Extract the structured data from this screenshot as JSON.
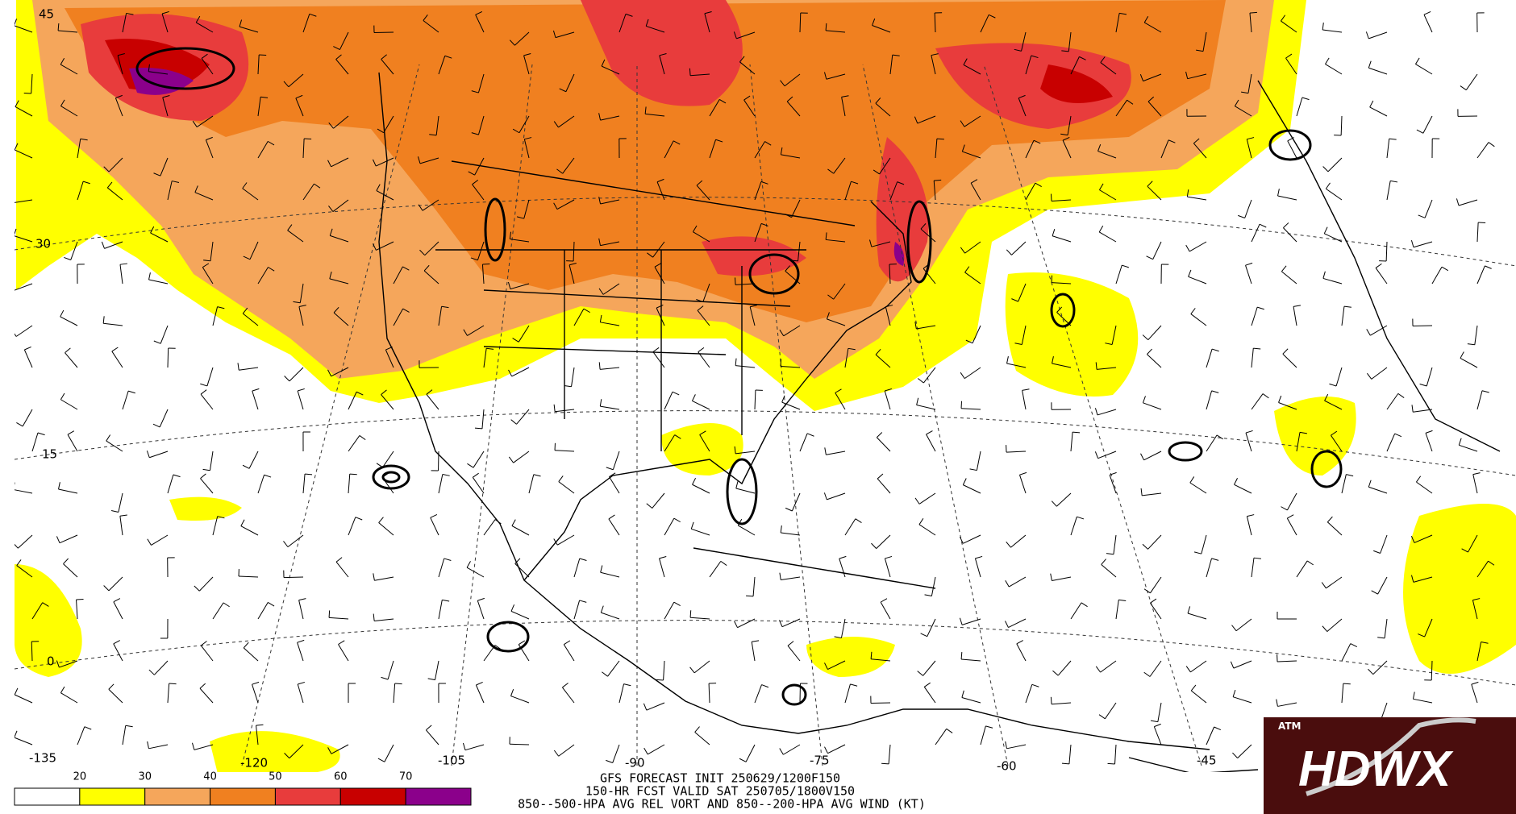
{
  "map": {
    "lat_labels": [
      45,
      30,
      15,
      0
    ],
    "lon_labels": [
      -135,
      -120,
      -105,
      -90,
      -75,
      -60,
      -45
    ],
    "colorbar": {
      "colors": [
        "#ffffff",
        "#ffff00",
        "#f5a65b",
        "#f08020",
        "#e83c3c",
        "#c80000",
        "#8b008b"
      ],
      "ticks": [
        20,
        30,
        40,
        50,
        60,
        70
      ]
    },
    "caption": [
      "GFS FORECAST INIT 250629/1200F150",
      "150-HR FCST VALID SAT 250705/1800V150",
      "850--500-HPA AVG REL VORT AND 850--200-HPA AVG WIND (KT)"
    ],
    "logo": {
      "emblem": "ATM",
      "text": "HDWX"
    }
  }
}
